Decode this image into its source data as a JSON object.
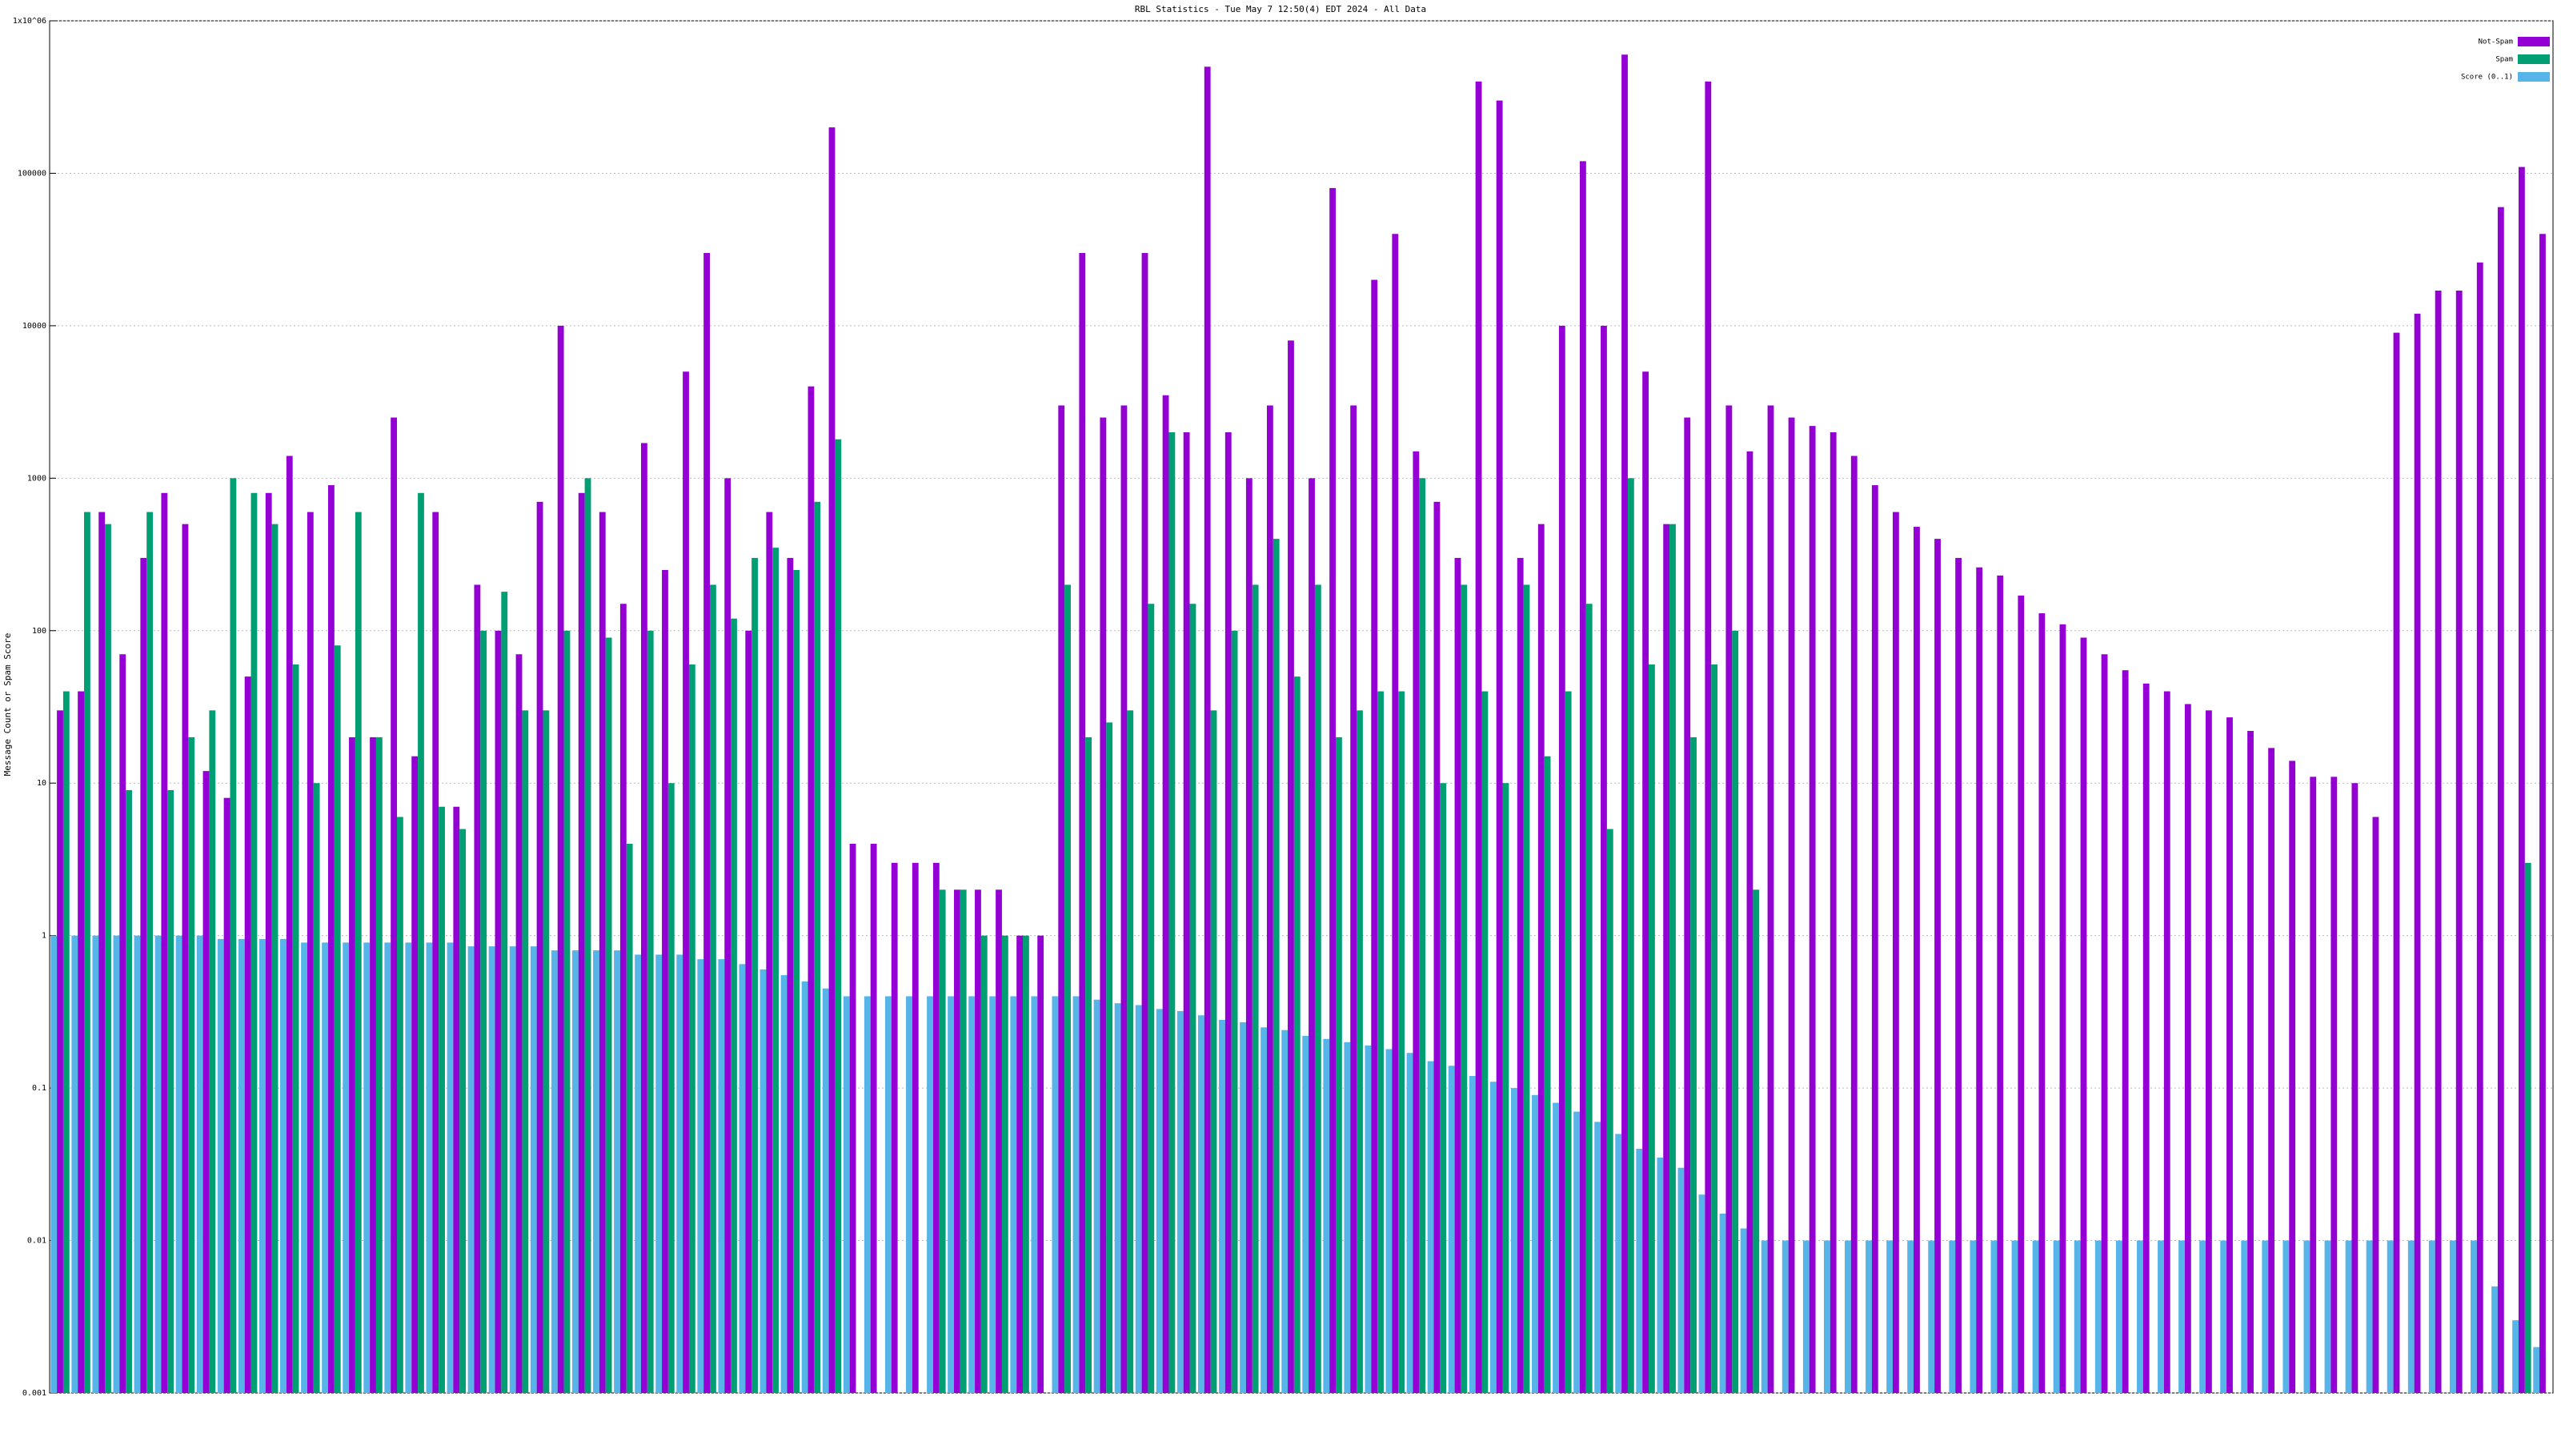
{
  "chart_data": {
    "type": "bar",
    "title": "RBL Statistics - Tue May  7 12:50(4) EDT 2024 - All Data",
    "y_label": "Message Count or Spam Score",
    "log_y": true,
    "grid": true,
    "legend": "upper right",
    "ylim": [
      0.001,
      1000000
    ],
    "yticks": [
      {
        "value": 0.001,
        "label": "0.001"
      },
      {
        "value": 0.01,
        "label": "0.01"
      },
      {
        "value": 0.1,
        "label": "0.1"
      },
      1,
      10,
      100,
      1000,
      10000,
      100000,
      {
        "value": 1000000,
        "label": "1x10^06"
      }
    ],
    "categories": [
      null,
      null,
      null,
      null,
      null,
      null,
      null,
      null,
      null,
      null,
      null,
      null,
      null,
      null,
      null,
      null,
      null,
      null,
      null,
      null,
      null,
      null,
      null,
      null,
      null,
      null,
      null,
      null,
      null,
      null,
      null,
      null,
      null,
      null,
      null,
      null,
      null,
      null,
      null,
      null,
      null,
      null,
      null,
      null,
      null,
      null,
      null,
      null,
      null,
      null,
      null,
      null,
      null,
      null,
      null,
      null,
      null,
      null,
      null,
      null,
      null,
      null,
      null,
      null,
      null,
      null,
      null,
      null,
      null,
      null,
      null,
      null,
      null,
      null,
      null,
      null,
      null,
      null,
      null,
      null,
      null,
      null,
      null,
      null,
      null,
      null,
      null,
      null,
      null,
      null,
      null,
      null,
      null,
      null,
      null,
      null,
      null,
      null,
      null,
      null,
      null,
      null,
      null,
      null,
      null,
      null,
      null,
      null,
      null,
      null,
      null,
      null,
      null,
      null,
      null,
      null,
      null,
      null,
      null,
      null
    ],
    "series": [
      {
        "name": "Not-Spam",
        "color": "#9400d3",
        "values": [
          30,
          40,
          600,
          70,
          300,
          800,
          500,
          12,
          8,
          50,
          800,
          1400,
          600,
          900,
          20,
          20,
          2500,
          15,
          600,
          7,
          200,
          100,
          70,
          700,
          10000,
          800,
          600,
          150,
          1700,
          250,
          5000,
          30000,
          1000,
          100,
          600,
          300,
          4000,
          200000,
          4,
          4,
          3,
          3,
          3,
          2,
          2,
          2,
          1,
          1,
          3000,
          30000,
          2500,
          3000,
          30000,
          3500,
          2000,
          500000,
          2000,
          1000,
          3000,
          8000,
          1000,
          80000,
          3000,
          20000,
          40000,
          1500,
          700,
          300,
          400000,
          300000,
          300,
          500,
          10000,
          120000,
          10000,
          600000,
          5000,
          500,
          2500,
          400000,
          3000,
          1500,
          3000,
          2500,
          2200,
          2000,
          1400,
          900,
          600,
          480,
          400,
          300,
          260,
          230,
          170,
          130,
          110,
          90,
          70,
          55,
          45,
          40,
          33,
          30,
          27,
          22,
          17,
          14,
          11,
          11,
          10,
          6,
          9000,
          12000,
          17000,
          17000,
          26000,
          60000,
          110000,
          40000
        ]
      },
      {
        "name": "Spam",
        "color": "#009e73",
        "values": [
          40,
          600,
          500,
          9,
          600,
          9,
          20,
          30,
          1000,
          800,
          500,
          60,
          10,
          80,
          600,
          20,
          6,
          800,
          7,
          5,
          100,
          180,
          30,
          30,
          100,
          1000,
          90,
          4,
          100,
          10,
          60,
          200,
          120,
          300,
          350,
          250,
          700,
          1800,
          null,
          null,
          null,
          null,
          2,
          2,
          1,
          1,
          1,
          null,
          200,
          20,
          25,
          30,
          150,
          2000,
          150,
          30,
          100,
          200,
          400,
          50,
          200,
          20,
          30,
          40,
          40,
          1000,
          10,
          200,
          40,
          10,
          200,
          15,
          40,
          150,
          5,
          1000,
          60,
          500,
          20,
          60,
          100,
          2,
          null,
          null,
          null,
          null,
          null,
          null,
          null,
          null,
          null,
          null,
          null,
          null,
          null,
          null,
          null,
          null,
          null,
          null,
          null,
          null,
          null,
          null,
          null,
          null,
          null,
          null,
          null,
          null,
          null,
          null,
          null,
          null,
          null,
          null,
          null,
          null,
          3,
          null
        ]
      },
      {
        "name": "Score (0..1)",
        "color": "#56b4e9",
        "values": [
          1,
          1,
          1,
          1,
          1,
          1,
          1,
          1,
          0.95,
          0.95,
          0.95,
          0.95,
          0.9,
          0.9,
          0.9,
          0.9,
          0.9,
          0.9,
          0.9,
          0.9,
          0.85,
          0.85,
          0.85,
          0.85,
          0.8,
          0.8,
          0.8,
          0.8,
          0.75,
          0.75,
          0.75,
          0.7,
          0.7,
          0.65,
          0.6,
          0.55,
          0.5,
          0.45,
          0.4,
          0.4,
          0.4,
          0.4,
          0.4,
          0.4,
          0.4,
          0.4,
          0.4,
          0.4,
          0.4,
          0.4,
          0.38,
          0.36,
          0.35,
          0.33,
          0.32,
          0.3,
          0.28,
          0.27,
          0.25,
          0.24,
          0.22,
          0.21,
          0.2,
          0.19,
          0.18,
          0.17,
          0.15,
          0.14,
          0.12,
          0.11,
          0.1,
          0.09,
          0.08,
          0.07,
          0.06,
          0.05,
          0.04,
          0.035,
          0.03,
          0.02,
          0.015,
          0.012,
          0.01,
          0.01,
          0.01,
          0.01,
          0.01,
          0.01,
          0.01,
          0.01,
          0.01,
          0.01,
          0.01,
          0.01,
          0.01,
          0.01,
          0.01,
          0.01,
          0.01,
          0.01,
          0.01,
          0.01,
          0.01,
          0.01,
          0.01,
          0.01,
          0.01,
          0.01,
          0.01,
          0.01,
          0.01,
          0.01,
          0.01,
          0.01,
          0.01,
          0.01,
          0.01,
          0.005,
          0.003,
          0.002
        ]
      }
    ]
  }
}
